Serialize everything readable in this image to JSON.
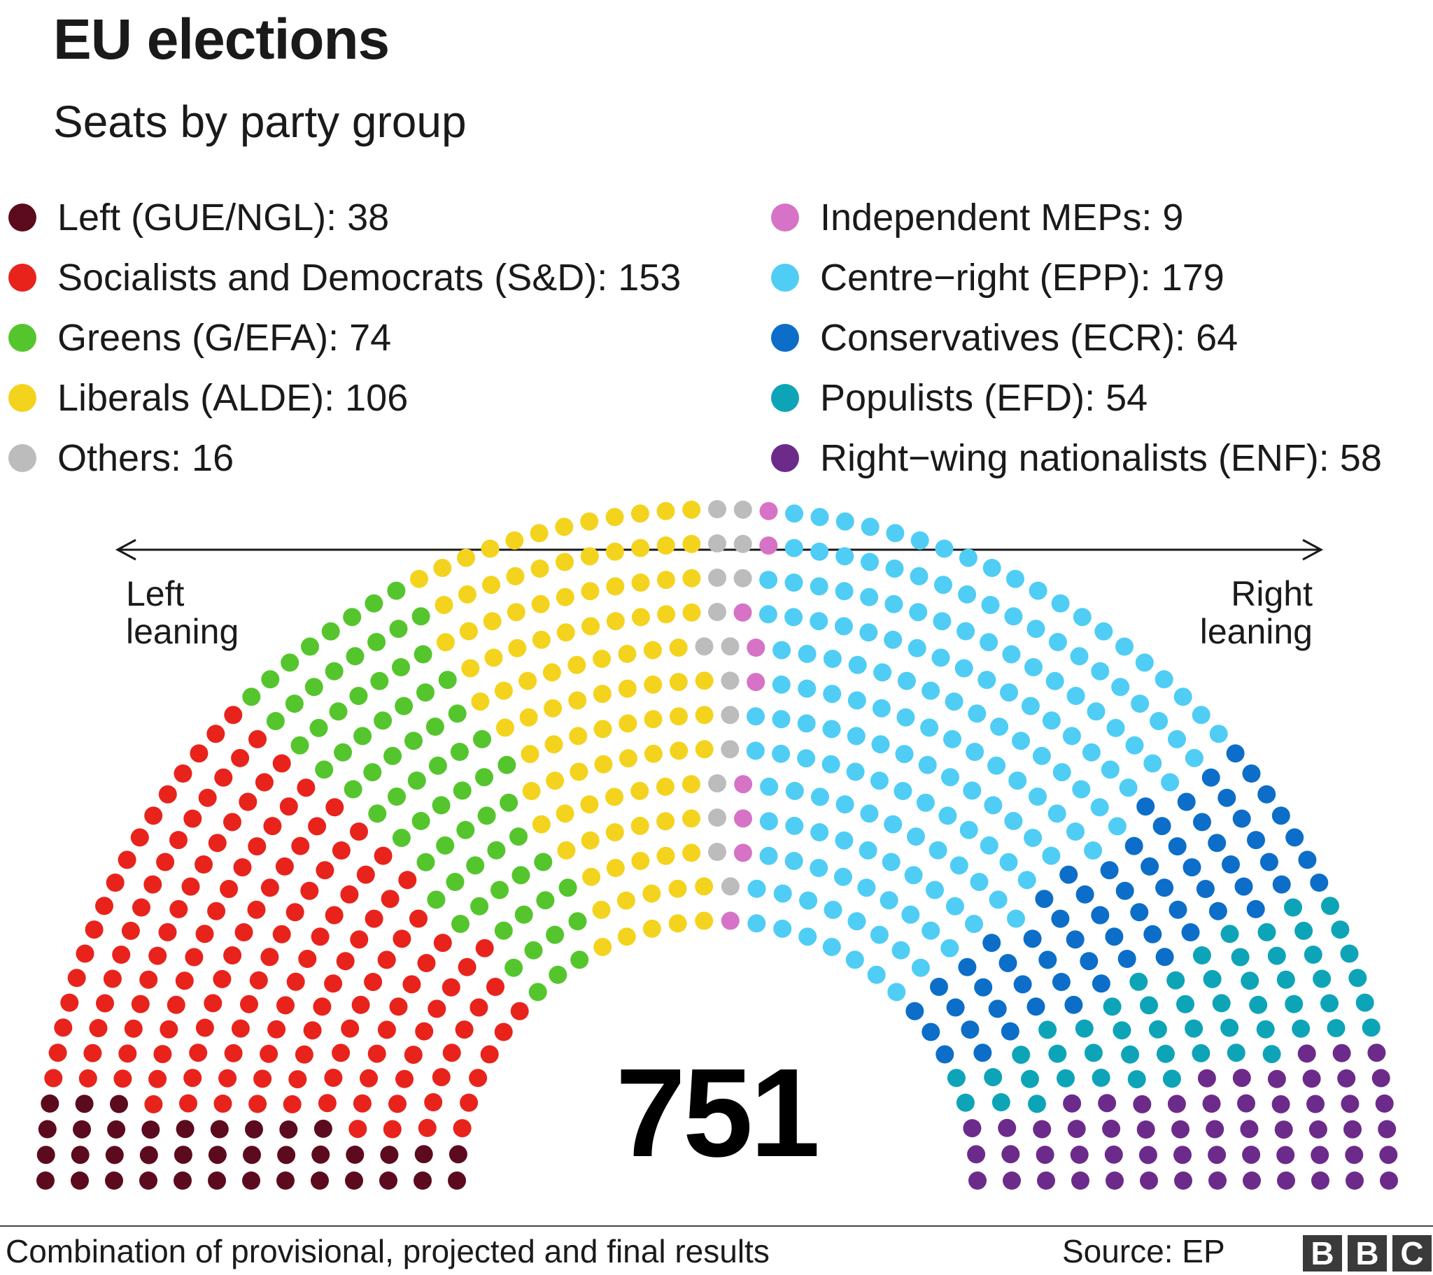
{
  "title": "EU elections",
  "subtitle": "Seats by party group",
  "legend_left": [
    {
      "text": "Left (GUE/NGL): 38",
      "color": "#5c0b1e"
    },
    {
      "text": "Socialists and Democrats (S&D): 153",
      "color": "#e8231c"
    },
    {
      "text": "Greens (G/EFA): 74",
      "color": "#55c52d"
    },
    {
      "text": "Liberals (ALDE): 106",
      "color": "#f4d31e"
    },
    {
      "text": "Others: 16",
      "color": "#bcbcbc"
    }
  ],
  "legend_right": [
    {
      "text": "Independent MEPs: 9",
      "color": "#d673c6"
    },
    {
      "text": "Centre−right (EPP): 179",
      "color": "#4fcdf5"
    },
    {
      "text": "Conservatives (ECR): 64",
      "color": "#0c6ec8"
    },
    {
      "text": "Populists (EFD): 54",
      "color": "#0ea4b8"
    },
    {
      "text": "Right−wing nationalists (ENF): 58",
      "color": "#6c2b8a"
    }
  ],
  "axis": {
    "left_label": "Left leaning",
    "right_label": "Right leaning"
  },
  "total": "751",
  "footnote": "Combination of provisional, projected and final results",
  "source": "Source: EP",
  "logo": [
    "B",
    "B",
    "C"
  ],
  "chart_data": {
    "type": "parliament",
    "total_seats": 751,
    "rows": 13,
    "series": [
      {
        "name": "Left (GUE/NGL)",
        "seats": 38,
        "color": "#5c0b1e"
      },
      {
        "name": "Socialists and Democrats (S&D)",
        "seats": 153,
        "color": "#e8231c"
      },
      {
        "name": "Greens (G/EFA)",
        "seats": 74,
        "color": "#55c52d"
      },
      {
        "name": "Liberals (ALDE)",
        "seats": 106,
        "color": "#f4d31e"
      },
      {
        "name": "Others",
        "seats": 16,
        "color": "#bcbcbc"
      },
      {
        "name": "Independent MEPs",
        "seats": 9,
        "color": "#d673c6"
      },
      {
        "name": "Centre−right (EPP)",
        "seats": 179,
        "color": "#4fcdf5"
      },
      {
        "name": "Conservatives (ECR)",
        "seats": 64,
        "color": "#0c6ec8"
      },
      {
        "name": "Populists (EFD)",
        "seats": 54,
        "color": "#0ea4b8"
      },
      {
        "name": "Right−wing nationalists (ENF)",
        "seats": 58,
        "color": "#6c2b8a"
      }
    ],
    "xlabel": "Left leaning ↔ Right leaning"
  }
}
